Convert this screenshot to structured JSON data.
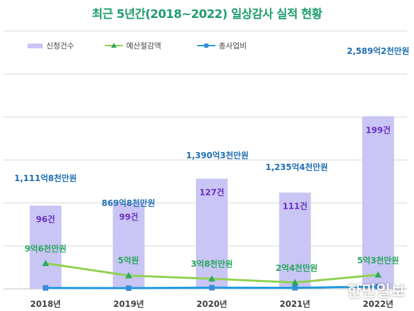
{
  "colors": {
    "title": "#1f9d6e",
    "bar": "#c9c5f4",
    "bar_label": "#6a2fbf",
    "line_budget": "#8fd14f",
    "line_budget_marker": "#2aa860",
    "line_budget_label": "#2aa860",
    "line_total": "#1f9be0",
    "line_total_label": "#1f6fb5",
    "grid": "#d9d9d9"
  },
  "watermark": "한민일보",
  "chart_data": {
    "type": "bar",
    "title": "최근 5년간(2018~2022) 일상감사 실적 현황",
    "categories": [
      "2018년",
      "2019년",
      "2020년",
      "2021년",
      "2022년"
    ],
    "legend_position": "top-left",
    "grid": true,
    "series": [
      {
        "name": "신청건수",
        "type": "bar",
        "values": [
          96,
          99,
          127,
          111,
          199
        ],
        "labels": [
          "96건",
          "99건",
          "127건",
          "111건",
          "199건"
        ]
      },
      {
        "name": "예산절감액",
        "type": "line",
        "values": [
          96000,
          50000,
          38000,
          24000,
          53000
        ],
        "labels": [
          "9억6천만원",
          "5억원",
          "3억8천만원",
          "2억4천만원",
          "5억3천만원"
        ]
      },
      {
        "name": "총사업비",
        "type": "line",
        "values": [
          1111800000,
          869800000,
          1390300000,
          1235400000,
          2589200000
        ],
        "labels": [
          "1,111억8천만원",
          "869억8천만원",
          "1,390억3천만원",
          "1,235억4천만원",
          "2,589억2천만원"
        ]
      }
    ]
  }
}
